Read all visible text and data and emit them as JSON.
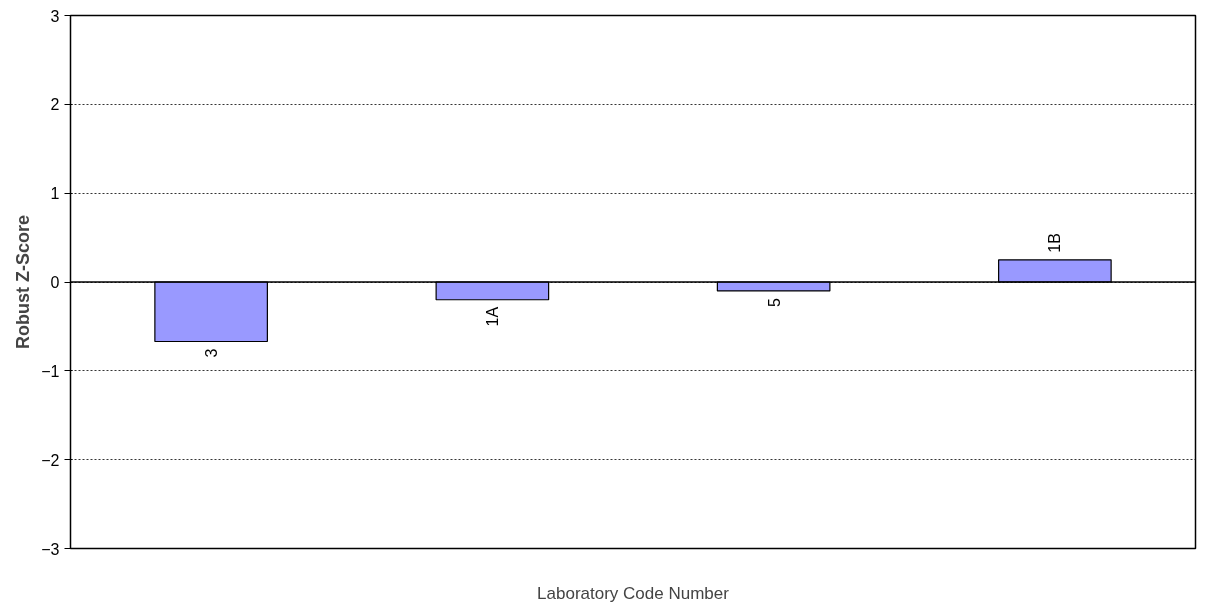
{
  "chart_data": {
    "type": "bar",
    "xlabel": "Laboratory Code Number",
    "ylabel": "Robust Z-Score",
    "categories": [
      "3",
      "1A",
      "5",
      "1B"
    ],
    "series": [
      {
        "color": "#9999ff",
        "values": [
          -0.67,
          -0.2,
          -0.1,
          0.25
        ]
      }
    ],
    "ylim": [
      -3,
      3
    ],
    "yticks": [
      -3,
      -2,
      -1,
      0,
      1,
      2,
      3
    ],
    "grid": "y",
    "tick_labels": "y",
    "ref_lines": [
      {
        "axis": "y",
        "value": 0,
        "color": "#000000",
        "line_style": "solid"
      }
    ]
  }
}
